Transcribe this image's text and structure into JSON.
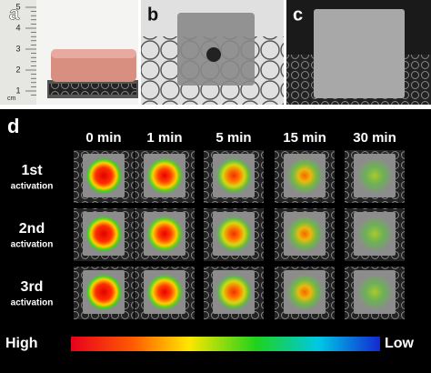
{
  "panels": {
    "a": {
      "label": "a",
      "ruler": {
        "unit": "cm",
        "labels": [
          "1",
          "2",
          "3",
          "4",
          "5"
        ]
      }
    },
    "b": {
      "label": "b"
    },
    "c": {
      "label": "c"
    },
    "d": {
      "label": "d",
      "columns": [
        "0 min",
        "1 min",
        "5 min",
        "15 min",
        "30 min"
      ],
      "rows": [
        {
          "label": "1st",
          "sub": "activation"
        },
        {
          "label": "2nd",
          "sub": "activation"
        },
        {
          "label": "3rd",
          "sub": "activation"
        }
      ],
      "scale": {
        "high": "High",
        "low": "Low"
      }
    }
  }
}
